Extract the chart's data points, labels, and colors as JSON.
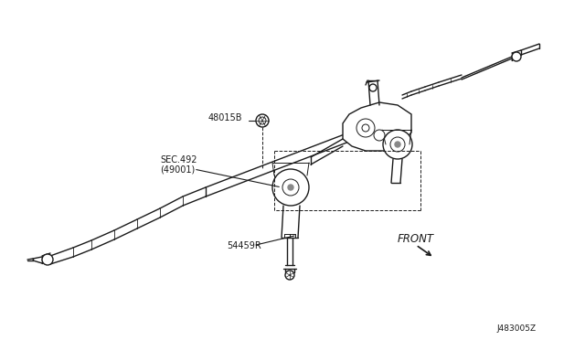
{
  "bg_color": "#ffffff",
  "line_color": "#1a1a1a",
  "label_48015B": "48015B",
  "label_SEC492": "SEC.492",
  "label_49001": "(49001)",
  "label_54459R": "54459R",
  "label_FRONT": "FRONT",
  "label_code": "J483005Z",
  "fig_width": 6.4,
  "fig_height": 3.72,
  "dpi": 100
}
